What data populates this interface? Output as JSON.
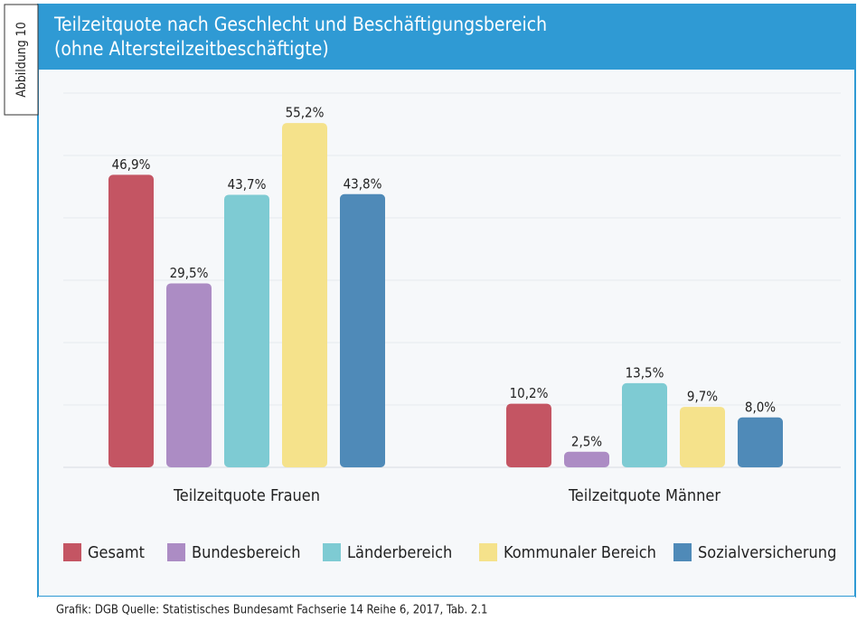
{
  "figure_label": "Abbildung 10",
  "source": "Grafik: DGB Quelle: Statistisches Bundesamt Fachserie 14 Reihe 6, 2017, Tab. 2.1",
  "chart_data": {
    "type": "bar",
    "title": "Teilzeitquote nach Geschlecht und Beschäftigungsbereich",
    "subtitle": "(ohne Altersteilzeitbeschäftigte)",
    "categories": [
      "Teilzeitquote Frauen",
      "Teilzeitquote Männer"
    ],
    "series": [
      {
        "name": "Gesamt",
        "color": "#c45563",
        "values": [
          46.9,
          10.2
        ],
        "value_labels": [
          "46,9%",
          "10,2%"
        ]
      },
      {
        "name": "Bundesbereich",
        "color": "#ac8cc4",
        "values": [
          29.5,
          2.5
        ],
        "value_labels": [
          "29,5%",
          "2,5%"
        ]
      },
      {
        "name": "Länderbereich",
        "color": "#7ecbd3",
        "values": [
          43.7,
          13.5
        ],
        "value_labels": [
          "43,7%",
          "13,5%"
        ]
      },
      {
        "name": "Kommunaler Bereich",
        "color": "#f5e28b",
        "values": [
          55.2,
          9.7
        ],
        "value_labels": [
          "55,2%",
          "9,7%"
        ]
      },
      {
        "name": "Sozialversicherung",
        "color": "#4f8ab8",
        "values": [
          43.8,
          8.0
        ],
        "value_labels": [
          "43,8%",
          "8,0%"
        ]
      }
    ],
    "ylim": [
      0,
      60
    ],
    "yticks": [
      0,
      10,
      20,
      30,
      40,
      50,
      60
    ],
    "grid": true,
    "legend": "bottom"
  }
}
